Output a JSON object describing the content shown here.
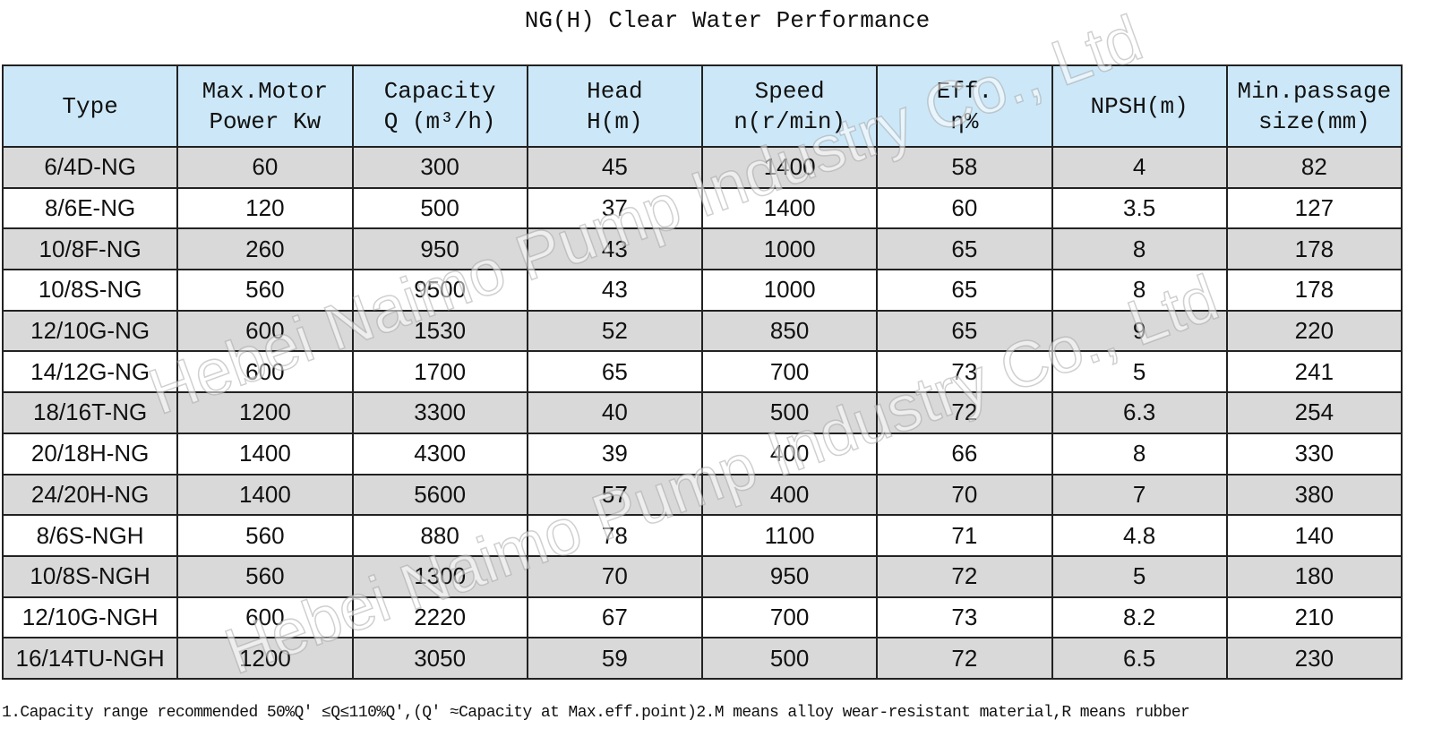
{
  "title": "NG(H) Clear Water Performance",
  "table": {
    "header": [
      [
        "Type"
      ],
      [
        "Max.Motor",
        "Power Kw"
      ],
      [
        "Capacity",
        "Q (m³/h)"
      ],
      [
        "Head",
        "H(m)"
      ],
      [
        "Speed",
        "n(r/min)"
      ],
      [
        "Eff.",
        "η%"
      ],
      [
        "NPSH(m)"
      ],
      [
        "Min.passage",
        "size(mm)"
      ]
    ],
    "rows": [
      [
        "6/4D-NG",
        "60",
        "300",
        "45",
        "1400",
        "58",
        "4",
        "82"
      ],
      [
        "8/6E-NG",
        "120",
        "500",
        "37",
        "1400",
        "60",
        "3.5",
        "127"
      ],
      [
        "10/8F-NG",
        "260",
        "950",
        "43",
        "1000",
        "65",
        "8",
        "178"
      ],
      [
        "10/8S-NG",
        "560",
        "9500",
        "43",
        "1000",
        "65",
        "8",
        "178"
      ],
      [
        "12/10G-NG",
        "600",
        "1530",
        "52",
        "850",
        "65",
        "9",
        "220"
      ],
      [
        "14/12G-NG",
        "600",
        "1700",
        "65",
        "700",
        "73",
        "5",
        "241"
      ],
      [
        "18/16T-NG",
        "1200",
        "3300",
        "40",
        "500",
        "72",
        "6.3",
        "254"
      ],
      [
        "20/18H-NG",
        "1400",
        "4300",
        "39",
        "400",
        "66",
        "8",
        "330"
      ],
      [
        "24/20H-NG",
        "1400",
        "5600",
        "57",
        "400",
        "70",
        "7",
        "380"
      ],
      [
        "8/6S-NGH",
        "560",
        "880",
        "78",
        "1100",
        "71",
        "4.8",
        "140"
      ],
      [
        "10/8S-NGH",
        "560",
        "1300",
        "70",
        "950",
        "72",
        "5",
        "180"
      ],
      [
        "12/10G-NGH",
        "600",
        "2220",
        "67",
        "700",
        "73",
        "8.2",
        "210"
      ],
      [
        "16/14TU-NGH",
        "1200",
        "3050",
        "59",
        "500",
        "72",
        "6.5",
        "230"
      ]
    ]
  },
  "footnote": "1.Capacity range recommended 50%Q′ ≤Q≤110%Q′,(Q′ ≈Capacity at Max.eff.point)2.M means alloy wear-resistant material,R means rubber",
  "watermark": "Hebei Naimo Pump Industry Co., Ltd"
}
